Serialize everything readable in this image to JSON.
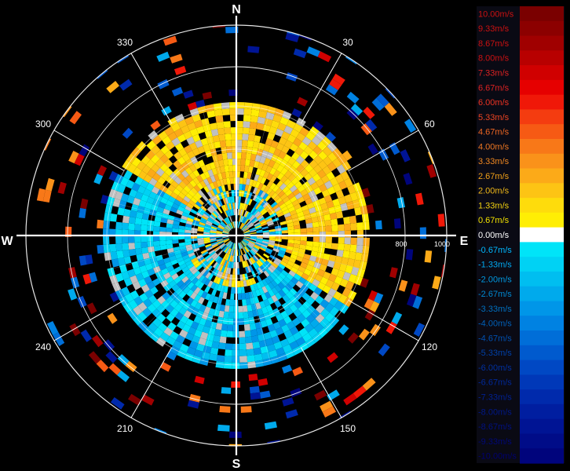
{
  "chart_data": {
    "type": "polar-heatmap",
    "title": "",
    "compass": {
      "north": "N",
      "east": "E",
      "south": "S",
      "west": "W"
    },
    "angle_labels": [
      {
        "deg": 30,
        "label": "30"
      },
      {
        "deg": 60,
        "label": "60"
      },
      {
        "deg": 120,
        "label": "120"
      },
      {
        "deg": 150,
        "label": "150"
      },
      {
        "deg": 210,
        "label": "210"
      },
      {
        "deg": 240,
        "label": "240"
      },
      {
        "deg": 300,
        "label": "300"
      },
      {
        "deg": 330,
        "label": "330"
      }
    ],
    "range_ticks": [
      "800",
      "1000"
    ],
    "range_max": 1000,
    "legend": {
      "labels": [
        "10.00m/s",
        "9.33m/s",
        "8.67m/s",
        "8.00m/s",
        "7.33m/s",
        "6.67m/s",
        "6.00m/s",
        "5.33m/s",
        "4.67m/s",
        "4.00m/s",
        "3.33m/s",
        "2.67m/s",
        "2.00m/s",
        "1.33m/s",
        "0.67m/s",
        "0.00m/s",
        "-0.67m/s",
        "-1.33m/s",
        "-2.00m/s",
        "-2.67m/s",
        "-3.33m/s",
        "-4.00m/s",
        "-4.67m/s",
        "-5.33m/s",
        "-6.00m/s",
        "-6.67m/s",
        "-7.33m/s",
        "-8.00m/s",
        "-8.67m/s",
        "-9.33m/s",
        "-10.00m/s"
      ],
      "colors": [
        "#7a0000",
        "#8c0000",
        "#a00000",
        "#b80000",
        "#d00000",
        "#e60000",
        "#f01808",
        "#f43c10",
        "#f65a14",
        "#f87818",
        "#fa921a",
        "#fcaa18",
        "#fdc414",
        "#fedc0c",
        "#ffee04",
        "#ffffff",
        "#00e4f8",
        "#00d2f4",
        "#00bef0",
        "#00aaec",
        "#0096e8",
        "#0082e2",
        "#006ed8",
        "#005ace",
        "#0048c4",
        "#0038b8",
        "#002aac",
        "#001ea0",
        "#001494",
        "#000c88",
        "#00047c"
      ],
      "label_colors": [
        "#cc1111",
        "#cc1111",
        "#cc1111",
        "#cc1111",
        "#dd2222",
        "#dd2222",
        "#ee3322",
        "#ee4422",
        "#ee6622",
        "#ee7722",
        "#f08820",
        "#f0a018",
        "#f0b818",
        "#f0d010",
        "#f0e000",
        "#ffffff",
        "#00b8ff",
        "#00a8f0",
        "#0098e0",
        "#0088d0",
        "#0070c0",
        "#0060b8",
        "#0050b0",
        "#0040a8",
        "#0030a0",
        "#002898",
        "#002090",
        "#001888",
        "#001080",
        "#000878",
        "#000070"
      ]
    }
  }
}
